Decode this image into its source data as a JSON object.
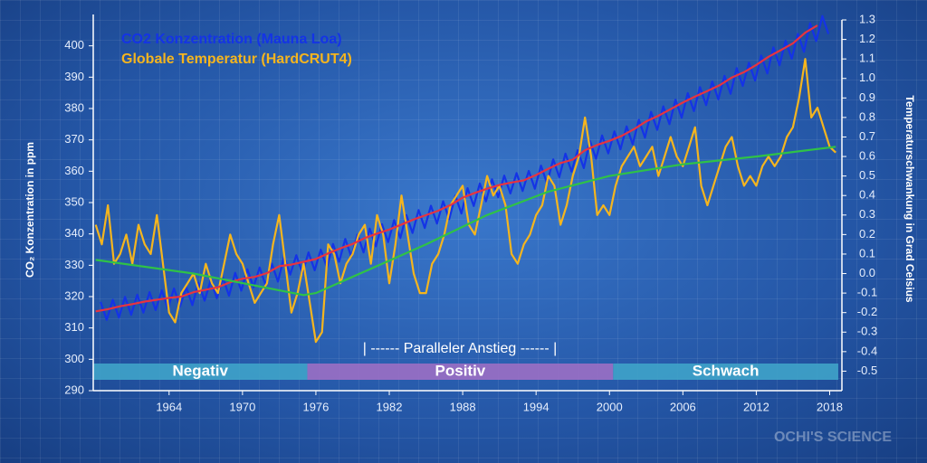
{
  "chart_data": {
    "type": "line",
    "xlim": [
      1957.8,
      2019
    ],
    "xticks": [
      1964,
      1970,
      1976,
      1982,
      1988,
      1994,
      2000,
      2006,
      2012,
      2018
    ],
    "ylim": [
      290,
      410
    ],
    "yticks": [
      290,
      300,
      310,
      320,
      330,
      340,
      350,
      360,
      370,
      380,
      390,
      400
    ],
    "y2lim": [
      -0.6,
      1.3
    ],
    "y2ticks": [
      -0.5,
      -0.4,
      -0.3,
      -0.2,
      -0.1,
      {
        "value": 0,
        "label": "0.0"
      },
      0.1,
      0.2,
      0.3,
      0.4,
      0.5,
      0.6,
      0.7,
      0.8,
      0.9,
      {
        "value": 1,
        "label": "1.0"
      },
      1.1,
      1.2,
      1.3
    ],
    "ylabel": "CO₂ Konzentration in ppm",
    "y2label": "Temperaturschwankung in Grad Celsius",
    "annotation": "| ------ Paralleler Anstieg ------ |",
    "watermark": "OCHI'S SCIENCE",
    "periods": [
      {
        "label": "Negativ",
        "start": 1957.8,
        "end": 1975.3,
        "color": "#3fa3c9"
      },
      {
        "label": "Positiv",
        "start": 1975.3,
        "end": 2000.3,
        "color": "#9b6fc4"
      },
      {
        "label": "Schwach",
        "start": 2000.3,
        "end": 2018.7,
        "color": "#3fa3c9"
      }
    ],
    "series": [
      {
        "name": "Globale Temperatur (HardCRUT4)",
        "color": "#f5b51e",
        "axis": "y2",
        "x": [
          1958,
          1958.5,
          1959,
          1959.5,
          1960,
          1960.5,
          1961,
          1961.5,
          1962,
          1962.5,
          1963,
          1963.5,
          1964,
          1964.5,
          1965,
          1965.5,
          1966,
          1966.5,
          1967,
          1967.5,
          1968,
          1968.5,
          1969,
          1969.5,
          1970,
          1970.5,
          1971,
          1971.5,
          1972,
          1972.5,
          1973,
          1973.5,
          1974,
          1974.5,
          1975,
          1975.5,
          1976,
          1976.5,
          1977,
          1977.5,
          1978,
          1978.5,
          1979,
          1979.5,
          1980,
          1980.5,
          1981,
          1981.5,
          1982,
          1982.5,
          1983,
          1983.5,
          1984,
          1984.5,
          1985,
          1985.5,
          1986,
          1986.5,
          1987,
          1987.5,
          1988,
          1988.5,
          1989,
          1989.5,
          1990,
          1990.5,
          1991,
          1991.5,
          1992,
          1992.5,
          1993,
          1993.5,
          1994,
          1994.5,
          1995,
          1995.5,
          1996,
          1996.5,
          1997,
          1997.5,
          1998,
          1998.5,
          1999,
          1999.5,
          2000,
          2000.5,
          2001,
          2001.5,
          2002,
          2002.5,
          2003,
          2003.5,
          2004,
          2004.5,
          2005,
          2005.5,
          2006,
          2006.5,
          2007,
          2007.5,
          2008,
          2008.5,
          2009,
          2009.5,
          2010,
          2010.5,
          2011,
          2011.5,
          2012,
          2012.5,
          2013,
          2013.5,
          2014,
          2014.5,
          2015,
          2015.5,
          2016,
          2016.5,
          2017,
          2017.5,
          2018,
          2018.5
        ],
        "values": [
          0.25,
          0.15,
          0.35,
          0.05,
          0.1,
          0.2,
          0.05,
          0.25,
          0.15,
          0.1,
          0.3,
          0.05,
          -0.2,
          -0.25,
          -0.1,
          -0.05,
          0.0,
          -0.1,
          0.05,
          -0.05,
          -0.1,
          0.05,
          0.2,
          0.1,
          0.05,
          -0.05,
          -0.15,
          -0.1,
          -0.05,
          0.15,
          0.3,
          0.05,
          -0.2,
          -0.1,
          0.05,
          -0.15,
          -0.35,
          -0.3,
          0.15,
          0.1,
          -0.05,
          0.05,
          0.1,
          0.2,
          0.25,
          0.05,
          0.3,
          0.2,
          -0.05,
          0.15,
          0.4,
          0.2,
          0.0,
          -0.1,
          -0.1,
          0.05,
          0.1,
          0.2,
          0.35,
          0.4,
          0.45,
          0.25,
          0.2,
          0.35,
          0.5,
          0.4,
          0.45,
          0.35,
          0.1,
          0.05,
          0.15,
          0.2,
          0.3,
          0.35,
          0.5,
          0.45,
          0.25,
          0.35,
          0.5,
          0.6,
          0.8,
          0.6,
          0.3,
          0.35,
          0.3,
          0.45,
          0.55,
          0.6,
          0.65,
          0.55,
          0.6,
          0.65,
          0.5,
          0.6,
          0.7,
          0.6,
          0.55,
          0.65,
          0.75,
          0.45,
          0.35,
          0.45,
          0.55,
          0.65,
          0.7,
          0.55,
          0.45,
          0.5,
          0.45,
          0.55,
          0.6,
          0.55,
          0.6,
          0.7,
          0.75,
          0.9,
          1.1,
          0.8,
          0.85,
          0.75,
          0.65,
          0.62
        ]
      },
      {
        "name": "CO2 Konzentration (Mauna Loa)",
        "color": "#1433e6",
        "axis": "y",
        "x": [
          1958.4,
          1958.9,
          1959.4,
          1959.9,
          1960.4,
          1960.9,
          1961.4,
          1961.9,
          1962.4,
          1962.9,
          1963.4,
          1963.9,
          1964.4,
          1964.9,
          1965.4,
          1965.9,
          1966.4,
          1966.9,
          1967.4,
          1967.9,
          1968.4,
          1968.9,
          1969.4,
          1969.9,
          1970.4,
          1970.9,
          1971.4,
          1971.9,
          1972.4,
          1972.9,
          1973.4,
          1973.9,
          1974.4,
          1974.9,
          1975.4,
          1975.9,
          1976.4,
          1976.9,
          1977.4,
          1977.9,
          1978.4,
          1978.9,
          1979.4,
          1979.9,
          1980.4,
          1980.9,
          1981.4,
          1981.9,
          1982.4,
          1982.9,
          1983.4,
          1983.9,
          1984.4,
          1984.9,
          1985.4,
          1985.9,
          1986.4,
          1986.9,
          1987.4,
          1987.9,
          1988.4,
          1988.9,
          1989.4,
          1989.9,
          1990.4,
          1990.9,
          1991.4,
          1991.9,
          1992.4,
          1992.9,
          1993.4,
          1993.9,
          1994.4,
          1994.9,
          1995.4,
          1995.9,
          1996.4,
          1996.9,
          1997.4,
          1997.9,
          1998.4,
          1998.9,
          1999.4,
          1999.9,
          2000.4,
          2000.9,
          2001.4,
          2001.9,
          2002.4,
          2002.9,
          2003.4,
          2003.9,
          2004.4,
          2004.9,
          2005.4,
          2005.9,
          2006.4,
          2006.9,
          2007.4,
          2007.9,
          2008.4,
          2008.9,
          2009.4,
          2009.9,
          2010.4,
          2010.9,
          2011.4,
          2011.9,
          2012.4,
          2012.9,
          2013.4,
          2013.9,
          2014.4,
          2014.9,
          2015.4,
          2015.9,
          2016.4,
          2016.9,
          2017.4,
          2017.9
        ],
        "values": [
          318.3,
          312.6,
          319.0,
          313.3,
          319.9,
          314.2,
          320.6,
          314.9,
          321.4,
          315.7,
          322.0,
          316.3,
          322.6,
          316.9,
          323.0,
          317.3,
          324.4,
          318.7,
          325.2,
          319.5,
          326.0,
          320.3,
          327.6,
          321.9,
          328.7,
          323.0,
          329.3,
          323.6,
          330.5,
          324.8,
          332.7,
          327.0,
          333.2,
          327.5,
          334.1,
          328.4,
          335.0,
          329.3,
          336.8,
          331.1,
          338.4,
          332.7,
          339.8,
          334.1,
          341.7,
          336.0,
          343.1,
          337.4,
          344.4,
          338.7,
          346.0,
          340.3,
          347.6,
          341.9,
          349.0,
          343.3,
          350.4,
          344.7,
          352.2,
          346.5,
          354.6,
          348.9,
          356.1,
          350.4,
          357.4,
          351.7,
          358.6,
          352.9,
          359.4,
          353.7,
          360.1,
          354.4,
          361.8,
          356.1,
          363.8,
          358.1,
          365.6,
          359.9,
          366.7,
          361.0,
          369.7,
          364.0,
          371.4,
          365.7,
          372.7,
          367.0,
          374.3,
          368.6,
          376.4,
          370.7,
          378.9,
          373.2,
          380.7,
          375.0,
          382.8,
          377.1,
          384.9,
          379.2,
          386.8,
          381.1,
          388.6,
          382.9,
          390.4,
          384.7,
          392.9,
          387.2,
          394.6,
          388.9,
          396.9,
          391.2,
          399.5,
          393.8,
          401.6,
          395.9,
          403.8,
          398.1,
          407.2,
          401.5,
          409.5,
          403.8
        ]
      },
      {
        "color": "#e8333f",
        "axis": "y",
        "x": [
          1958,
          1959,
          1960,
          1961,
          1962,
          1963,
          1964,
          1965,
          1966,
          1967,
          1968,
          1969,
          1970,
          1971,
          1972,
          1973,
          1974,
          1975,
          1976,
          1977,
          1978,
          1979,
          1980,
          1981,
          1982,
          1983,
          1984,
          1985,
          1986,
          1987,
          1988,
          1989,
          1990,
          1991,
          1992,
          1993,
          1994,
          1995,
          1996,
          1997,
          1998,
          1999,
          2000,
          2001,
          2002,
          2003,
          2004,
          2005,
          2006,
          2007,
          2008,
          2009,
          2010,
          2011,
          2012,
          2013,
          2014,
          2015,
          2016,
          2017
        ],
        "values": [
          315.3,
          316.0,
          316.9,
          317.6,
          318.4,
          319.0,
          319.6,
          320.0,
          321.4,
          322.2,
          323.0,
          324.6,
          325.7,
          326.3,
          327.5,
          329.7,
          330.2,
          331.1,
          332.0,
          333.8,
          335.4,
          336.8,
          338.7,
          340.1,
          341.4,
          343.0,
          344.6,
          346.0,
          347.4,
          349.2,
          351.6,
          353.1,
          354.4,
          355.6,
          356.4,
          357.1,
          358.8,
          360.8,
          362.6,
          363.7,
          366.7,
          368.4,
          369.7,
          371.3,
          373.4,
          375.9,
          377.7,
          379.8,
          381.9,
          383.8,
          385.6,
          387.4,
          389.9,
          391.6,
          393.9,
          396.5,
          398.6,
          400.8,
          404.2,
          406.5
        ]
      },
      {
        "color": "#2fc247",
        "axis": "y2",
        "x": [
          1958,
          1966,
          1975,
          1976,
          1985,
          1990,
          1995,
          2000,
          2006,
          2012,
          2018.5
        ],
        "values": [
          0.07,
          0.0,
          -0.11,
          -0.1,
          0.15,
          0.3,
          0.42,
          0.5,
          0.56,
          0.6,
          0.65
        ]
      }
    ]
  }
}
